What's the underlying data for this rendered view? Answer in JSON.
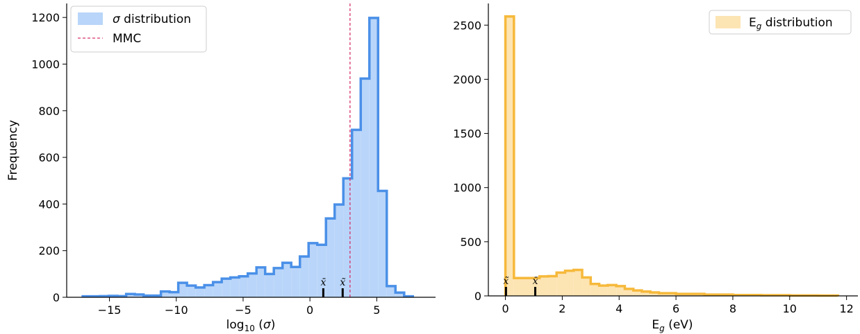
{
  "chart_data": [
    {
      "type": "histogram",
      "xlabel": "log10 (σ)",
      "ylabel": "Frequency",
      "xlim": [
        -18.2,
        9.4
      ],
      "ylim": [
        0,
        1260
      ],
      "xticks": [
        -15,
        -10,
        -5,
        0,
        5
      ],
      "yticks": [
        0,
        200,
        400,
        600,
        800,
        1000,
        1200
      ],
      "legend": {
        "position": "top-left",
        "entries": [
          "σ distribution",
          "MMC"
        ]
      },
      "series": [
        {
          "name": "σ distribution",
          "color_fill": "#b9d5f9",
          "color_edge": "#4a90e8",
          "bin_edges": [
            -17,
            -16.35,
            -15.7,
            -15.05,
            -14.4,
            -13.75,
            -13.1,
            -12.45,
            -11.8,
            -11.15,
            -10.5,
            -9.85,
            -9.2,
            -8.55,
            -7.9,
            -7.25,
            -6.6,
            -5.95,
            -5.3,
            -4.65,
            -4.0,
            -3.35,
            -2.7,
            -2.05,
            -1.4,
            -0.75,
            -0.1,
            0.55,
            1.2,
            1.85,
            2.5,
            3.15,
            3.8,
            4.45,
            5.1,
            5.75,
            6.4,
            7.05,
            7.7
          ],
          "counts": [
            4,
            4,
            5,
            6,
            5,
            14,
            12,
            7,
            7,
            25,
            22,
            62,
            50,
            42,
            52,
            65,
            80,
            85,
            90,
            102,
            128,
            100,
            125,
            148,
            130,
            175,
            232,
            225,
            338,
            398,
            510,
            718,
            938,
            1198,
            456,
            48,
            20,
            4
          ]
        },
        {
          "name": "MMC",
          "type": "vline",
          "x": 3.0,
          "color": "#d6336c"
        }
      ],
      "markers": [
        {
          "label": "x̄",
          "x": 1.0
        },
        {
          "label": "x̃",
          "x": 2.45
        }
      ]
    },
    {
      "type": "histogram",
      "xlabel": "Eg (eV)",
      "ylabel": "",
      "xlim": [
        -0.6,
        12.4
      ],
      "ylim": [
        0,
        2700
      ],
      "xticks": [
        0,
        2,
        4,
        6,
        8,
        10,
        12
      ],
      "yticks": [
        0,
        500,
        1000,
        1500,
        2000,
        2500
      ],
      "legend": {
        "position": "top-right",
        "entries": [
          "Eg distribution"
        ]
      },
      "series": [
        {
          "name": "Eg distribution",
          "color_fill": "#fde4b3",
          "color_edge": "#f6b93b",
          "bin_edges": [
            0,
            0.3,
            0.9,
            1.2,
            1.5,
            1.8,
            2.1,
            2.4,
            2.7,
            3.0,
            3.3,
            3.6,
            3.9,
            4.2,
            4.5,
            4.8,
            5.1,
            5.4,
            6.0,
            7.0,
            8.0,
            9.0,
            10.0,
            11.0,
            11.7
          ],
          "counts": [
            2580,
            165,
            165,
            180,
            182,
            215,
            232,
            240,
            170,
            110,
            95,
            100,
            90,
            65,
            50,
            40,
            32,
            25,
            18,
            12,
            8,
            6,
            4,
            3
          ]
        }
      ],
      "markers": [
        {
          "label": "x̃",
          "x": 0.02
        },
        {
          "label": "x̄",
          "x": 1.05
        }
      ]
    }
  ]
}
